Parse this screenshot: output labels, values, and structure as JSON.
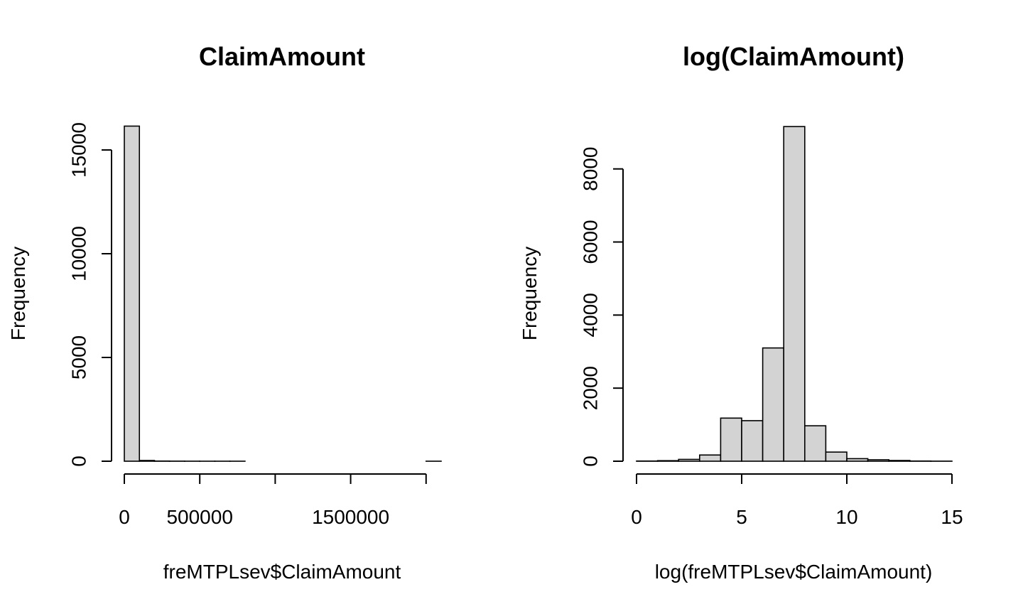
{
  "chart_data": [
    {
      "type": "bar",
      "title": "ClaimAmount",
      "xlabel": "freMTPLsev$ClaimAmount",
      "ylabel": "Frequency",
      "x_ticks": [
        0,
        500000,
        1000000,
        1500000,
        2000000
      ],
      "x_tick_labels": [
        "0",
        "500000",
        "",
        "1500000",
        ""
      ],
      "y_ticks": [
        0,
        5000,
        10000,
        15000
      ],
      "y_tick_labels": [
        "0",
        "5000",
        "10000",
        "15000"
      ],
      "xlim": [
        0,
        2100000
      ],
      "ylim": [
        0,
        16200
      ],
      "bin_edges": [
        0,
        100000,
        200000,
        300000,
        400000,
        500000,
        600000,
        700000,
        800000,
        900000,
        1000000,
        1100000,
        1200000,
        1300000,
        1400000,
        1500000,
        1600000,
        1700000,
        1800000,
        1900000,
        2000000,
        2100000
      ],
      "values": [
        16150,
        35,
        8,
        4,
        2,
        1,
        1,
        1,
        0,
        0,
        0,
        0,
        0,
        0,
        0,
        0,
        0,
        0,
        0,
        0,
        1
      ]
    },
    {
      "type": "bar",
      "title": "log(ClaimAmount)",
      "xlabel": "log(freMTPLsev$ClaimAmount)",
      "ylabel": "Frequency",
      "x_ticks": [
        0,
        5,
        10,
        15
      ],
      "x_tick_labels": [
        "0",
        "5",
        "10",
        "15"
      ],
      "y_ticks": [
        0,
        2000,
        4000,
        6000,
        8000
      ],
      "y_tick_labels": [
        "0",
        "2000",
        "4000",
        "6000",
        "8000"
      ],
      "xlim": [
        0,
        15
      ],
      "ylim": [
        0,
        9200
      ],
      "bin_edges": [
        0,
        1,
        2,
        3,
        4,
        5,
        6,
        7,
        8,
        9,
        10,
        11,
        12,
        13,
        14,
        15
      ],
      "values": [
        5,
        15,
        50,
        170,
        1180,
        1110,
        3100,
        9160,
        970,
        250,
        70,
        40,
        20,
        5,
        2
      ]
    }
  ]
}
